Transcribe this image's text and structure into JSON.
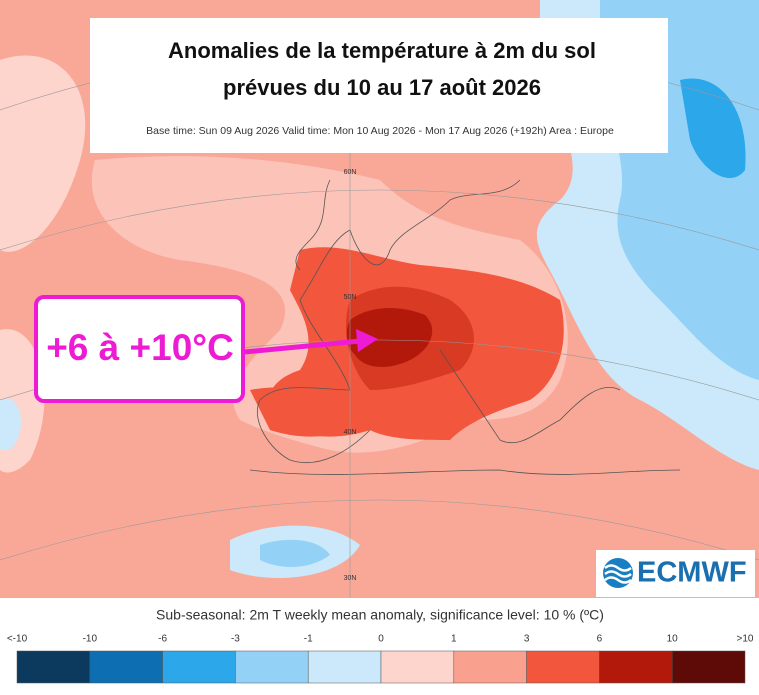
{
  "title_lines": [
    "Anomalies de la température à 2m du sol",
    "prévues du 10 au 17 août 2026"
  ],
  "subtitle": "Base time: Sun 09 Aug 2026 Valid time: Mon 10 Aug 2026 - Mon 17 Aug 2026 (+192h) Area : Europe",
  "annotation": "+6 à +10°C",
  "logo": "ECMWF",
  "latitude_labels": [
    "60N",
    "50N",
    "40N",
    "30N"
  ],
  "legend": {
    "caption": "Sub-seasonal: 2m T weekly mean anomaly, significance level: 10 % (ºC)",
    "labels": [
      "<-10",
      "-10",
      "-6",
      "-3",
      "-1",
      "0",
      "1",
      "3",
      "6",
      "10",
      ">10"
    ],
    "colors": [
      "#0b3a5e",
      "#0d6fb2",
      "#2ca7ea",
      "#93d2f6",
      "#cbe9fa",
      "#fdd5cd",
      "#f9a08f",
      "#f2563d",
      "#b3190b",
      "#5e0a06"
    ]
  }
}
